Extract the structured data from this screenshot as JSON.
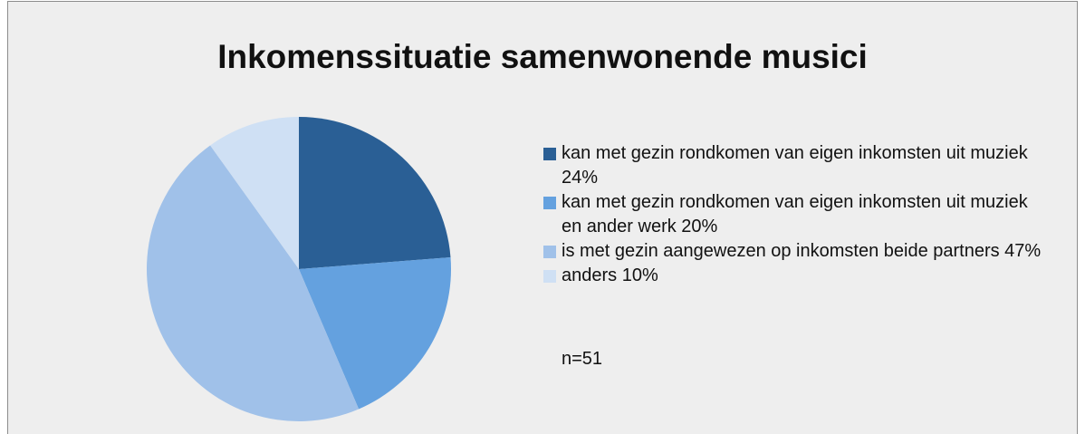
{
  "chart_data": {
    "type": "pie",
    "title": "Inkomenssituatie samenwonende musici",
    "categories": [
      "kan met gezin rondkomen van eigen inkomsten uit muziek 24%",
      "kan met gezin rondkomen van eigen inkomsten uit muziek en ander werk 20%",
      "is met gezin aangewezen op inkomsten beide partners 47%",
      "anders 10%"
    ],
    "values": [
      24,
      20,
      47,
      10
    ],
    "colors": [
      "#2a5f95",
      "#64a1df",
      "#a0c1e9",
      "#cfe0f4"
    ],
    "annotation": "n=51",
    "legend": "right"
  }
}
